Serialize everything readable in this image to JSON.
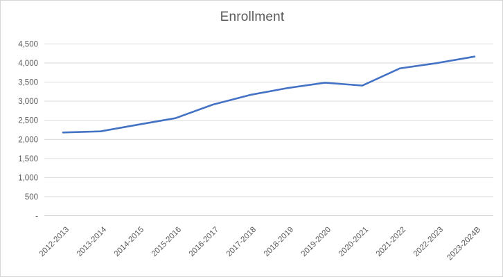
{
  "chart_data": {
    "type": "line",
    "title": "Enrollment",
    "categories": [
      "2012-2013",
      "2013-2014",
      "2014-2015",
      "2015-2016",
      "2016-2017",
      "2017-2018",
      "2018-2019",
      "2019-2020",
      "2020-2021",
      "2021-2022",
      "2022-2023",
      "2023-2024B"
    ],
    "series": [
      {
        "name": "Enrollment",
        "values": [
          2180,
          2210,
          2385,
          2555,
          2910,
          3165,
          3345,
          3485,
          3410,
          3860,
          4000,
          4170
        ]
      }
    ],
    "xlabel": "",
    "ylabel": "",
    "ylim": [
      0,
      4500
    ],
    "ytick_interval": 500,
    "ytick_labels": [
      "-",
      "500",
      "1,000",
      "1,500",
      "2,000",
      "2,500",
      "3,000",
      "3,500",
      "4,000",
      "4,500"
    ],
    "grid": "horizontal",
    "legend_position": "none",
    "colors": {
      "series_line": "#4472c4",
      "title_text": "#595959",
      "tick_text": "#595959",
      "gridline": "#d9d9d9",
      "axis_line": "#d0d0d0",
      "background": "#ffffff",
      "frame_border": "#d6d6d6"
    }
  }
}
